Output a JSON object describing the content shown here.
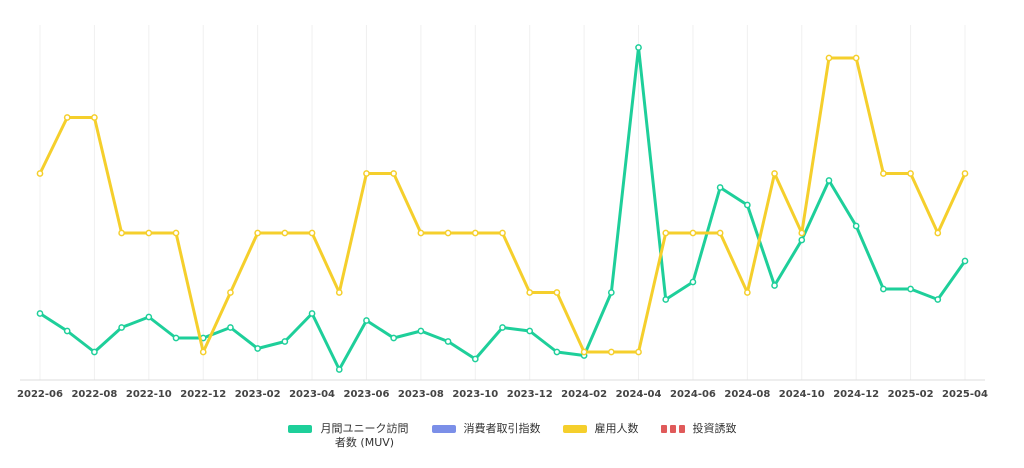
{
  "chart_data": {
    "type": "line",
    "categories": [
      "2022-06",
      null,
      "2022-08",
      null,
      "2022-10",
      null,
      "2022-12",
      null,
      "2023-02",
      null,
      "2023-04",
      null,
      "2023-06",
      null,
      "2023-08",
      null,
      "2023-10",
      null,
      "2023-12",
      null,
      "2024-02",
      null,
      "2024-04",
      null,
      "2024-06",
      null,
      "2024-08",
      null,
      "2024-10",
      null,
      "2024-12",
      null,
      "2025-02",
      null,
      "2025-04"
    ],
    "series": [
      {
        "name": "月間ユニーク訪問者数 (MUV)",
        "color": "#1ecf9a",
        "values": [
          19,
          14,
          8,
          15,
          18,
          12,
          12,
          15,
          9,
          11,
          19,
          3,
          17,
          12,
          14,
          11,
          6,
          15,
          14,
          8,
          7,
          25,
          95,
          23,
          28,
          55,
          50,
          27,
          40,
          57,
          44,
          26,
          26,
          23,
          34
        ]
      },
      {
        "name": "消費者取引指数",
        "color": "#7b8fe8",
        "values": [
          null,
          null,
          null,
          null,
          null,
          null,
          null,
          null,
          null,
          null,
          null,
          null,
          null,
          null,
          null,
          null,
          null,
          null,
          null,
          null,
          null,
          null,
          null,
          null,
          null,
          null,
          null,
          null,
          null,
          null,
          null,
          null,
          null,
          null,
          null
        ]
      },
      {
        "name": "雇用人数",
        "color": "#f5cf2c",
        "values": [
          59,
          75,
          75,
          42,
          42,
          42,
          8,
          25,
          42,
          42,
          42,
          25,
          59,
          59,
          42,
          42,
          42,
          42,
          25,
          25,
          8,
          8,
          8,
          42,
          42,
          42,
          25,
          59,
          42,
          92,
          92,
          59,
          59,
          42,
          59
        ]
      },
      {
        "name": "投資誘致",
        "color": "#e05a5a",
        "dashed": true,
        "values": [
          null,
          null,
          null,
          null,
          null,
          null,
          null,
          null,
          null,
          null,
          null,
          null,
          null,
          null,
          null,
          null,
          null,
          null,
          null,
          null,
          null,
          null,
          null,
          null,
          null,
          null,
          null,
          null,
          null,
          null,
          null,
          null,
          null,
          null,
          null
        ]
      }
    ],
    "ylim": [
      0,
      100
    ],
    "grid": true
  }
}
